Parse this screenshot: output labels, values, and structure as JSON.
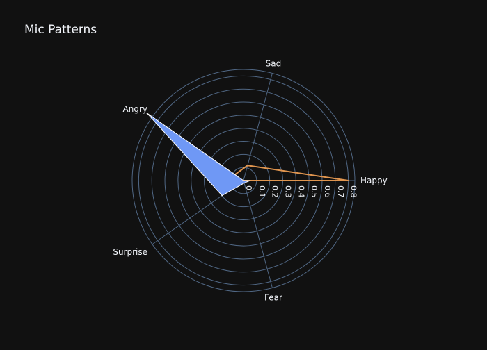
{
  "chart_data": {
    "type": "radar",
    "title": "Mic Patterns",
    "categories": [
      "Happy",
      "Sad",
      "Angry",
      "Surprise",
      "Fear"
    ],
    "category_angles_deg": [
      0,
      75,
      145,
      215,
      285
    ],
    "radial_ticks": [
      "0",
      "0.1",
      "0.2",
      "0.3",
      "0.4",
      "0.5",
      "0.6",
      "0.7",
      "0.8"
    ],
    "radial_range": [
      0,
      0.85
    ],
    "series": [
      {
        "values": [
          0.8,
          0.12,
          0.08,
          0.08,
          0.0
        ],
        "color": "#e0954f",
        "fill": "none"
      },
      {
        "values": [
          0.05,
          0.0,
          0.9,
          0.2,
          0.02
        ],
        "color": "#ffffff",
        "fill": "#6f98f5"
      }
    ],
    "colors": {
      "background": "#111111",
      "grid": "#506784",
      "text": "#f2f5fa"
    }
  }
}
